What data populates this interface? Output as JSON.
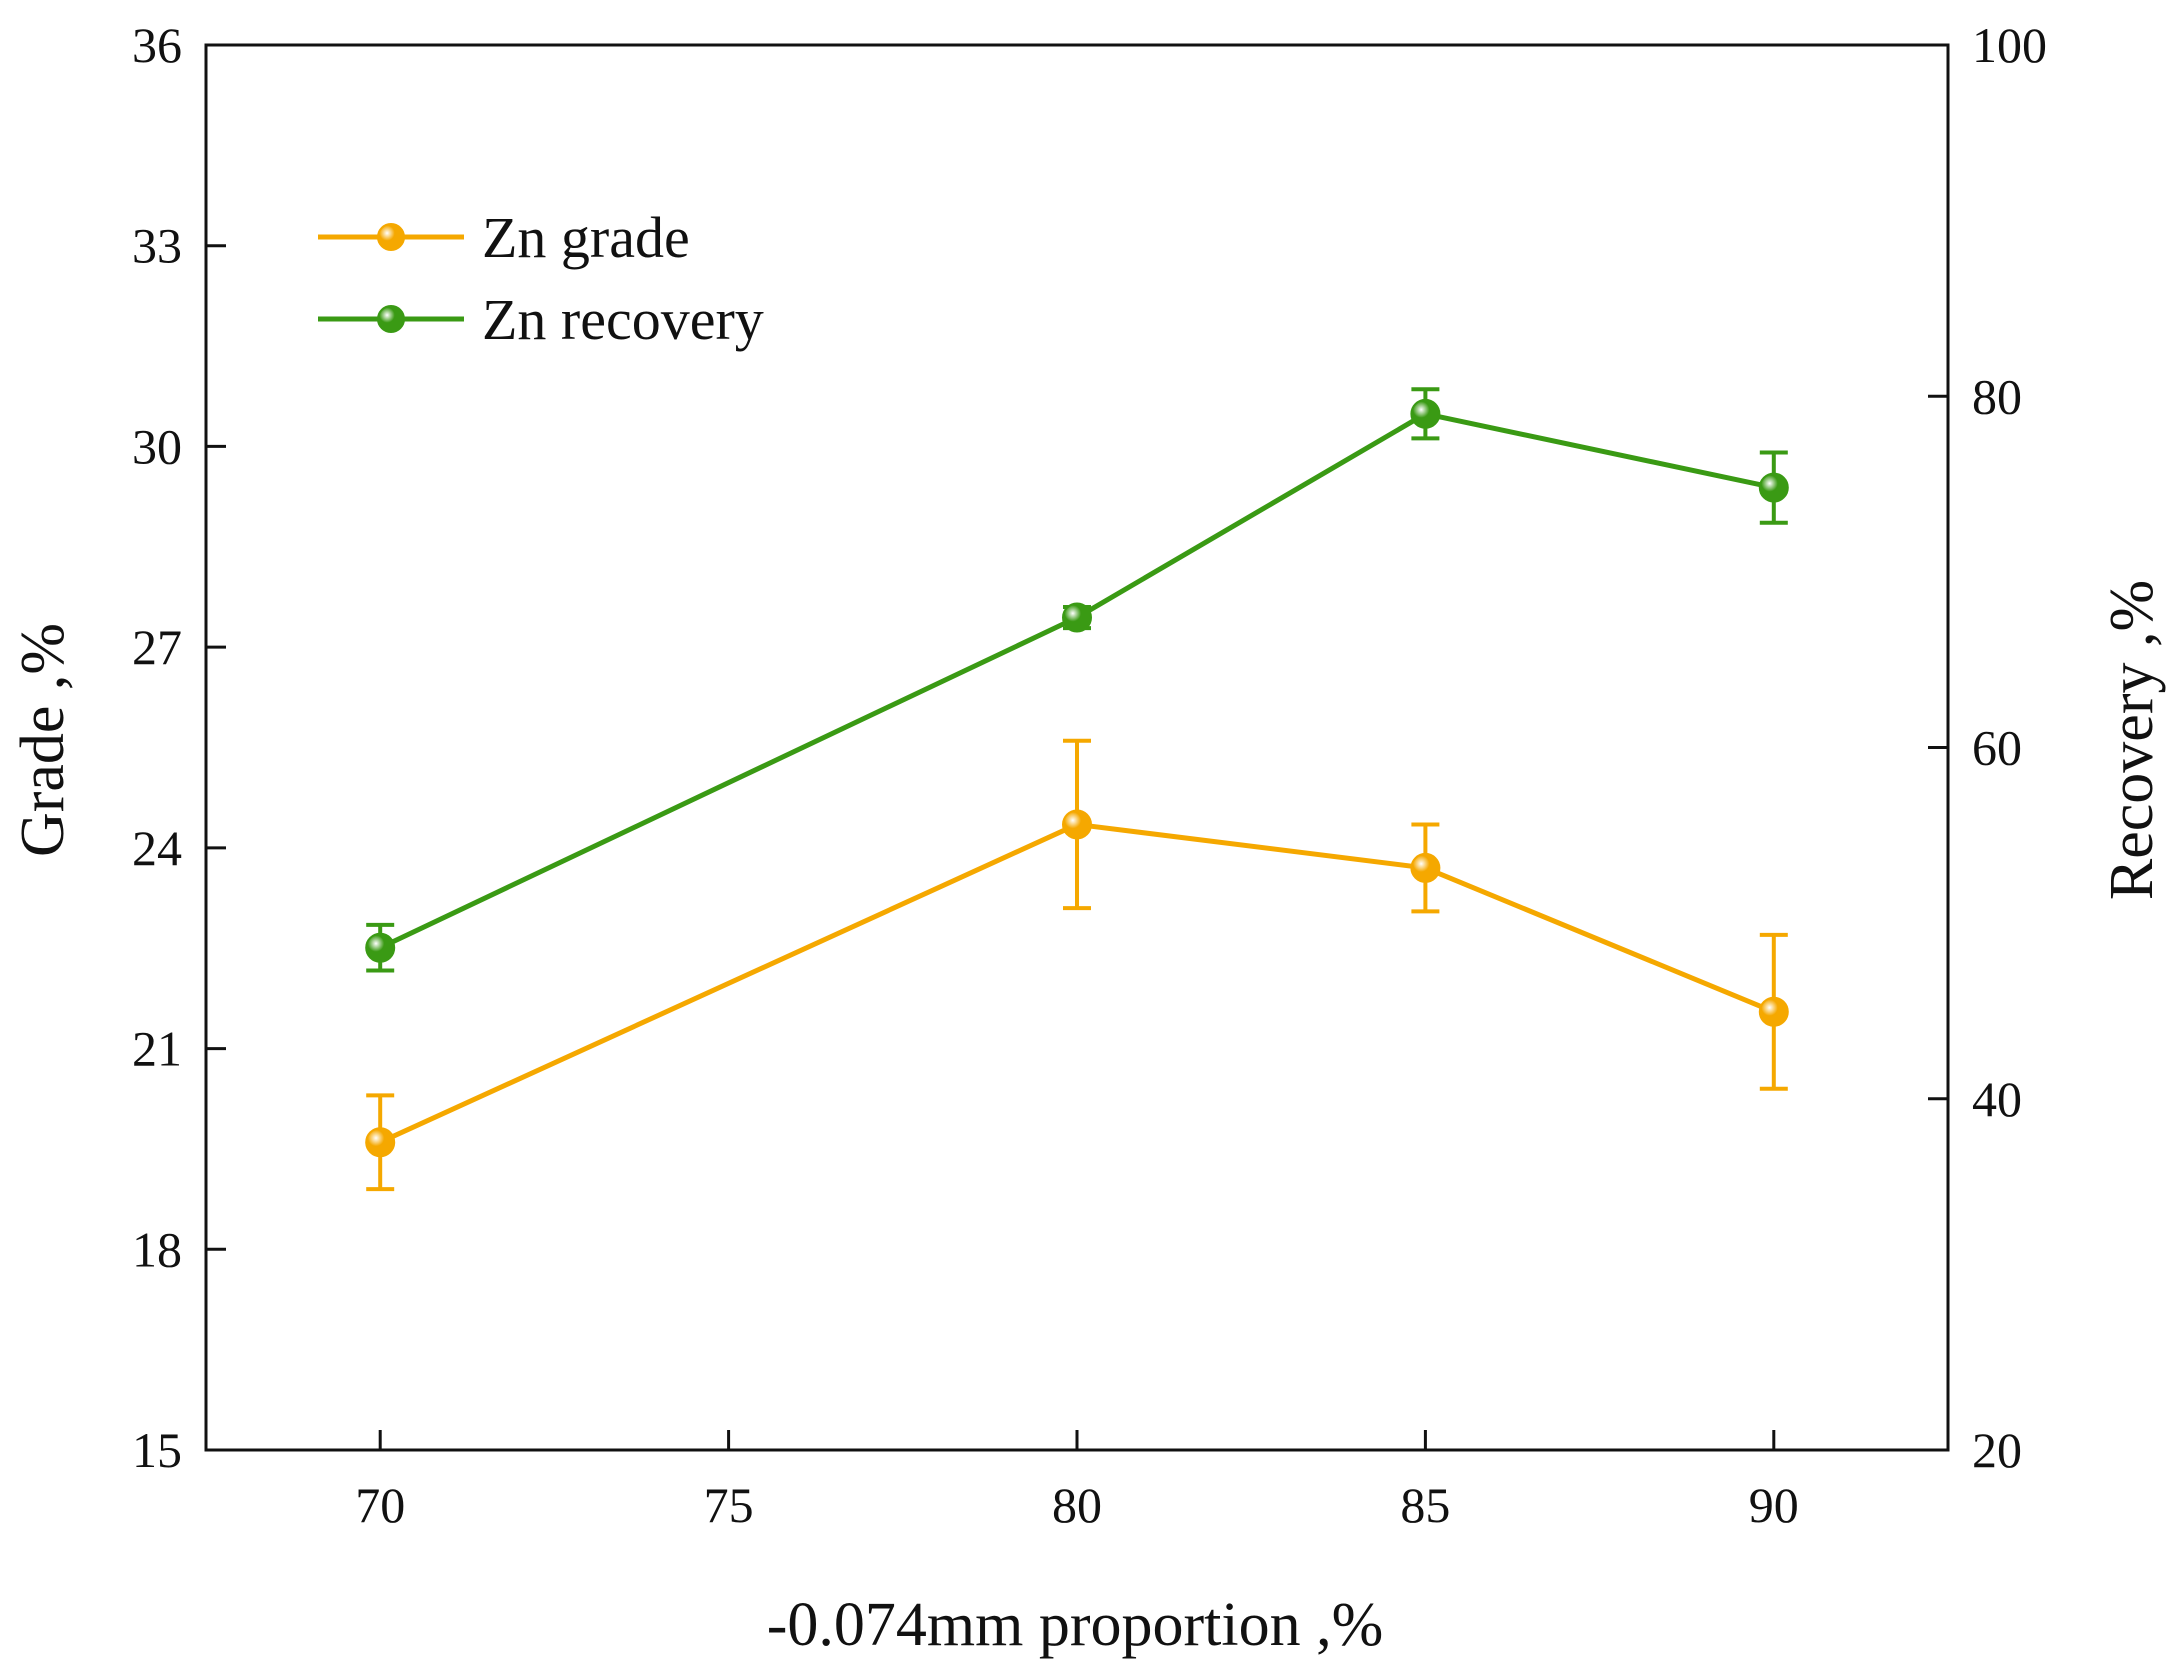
{
  "chart_data": {
    "type": "line",
    "xlabel": "-0.074mm proportion ,%",
    "ylabel": "Grade ,%",
    "y2label": "Recovery ,%",
    "xlim": [
      67.5,
      92.5
    ],
    "ylim": [
      15,
      36
    ],
    "y2lim": [
      20,
      100
    ],
    "xticks": [
      70,
      75,
      80,
      85,
      90
    ],
    "yticks": [
      15,
      18,
      21,
      24,
      27,
      30,
      33,
      36
    ],
    "y2ticks": [
      20,
      40,
      60,
      80,
      100
    ],
    "grid": false,
    "legend_position": "top-left",
    "series": [
      {
        "name": "Zn grade",
        "axis": "left",
        "color": "#F5A800",
        "x": [
          70,
          80,
          85,
          90
        ],
        "values": [
          19.6,
          24.35,
          23.7,
          21.55
        ],
        "errors": [
          0.7,
          1.25,
          0.65,
          1.15
        ]
      },
      {
        "name": "Zn recovery",
        "axis": "right",
        "color": "#3A9A14",
        "x": [
          70,
          80,
          85,
          90
        ],
        "values": [
          48.6,
          67.4,
          79.0,
          74.8
        ],
        "errors": [
          1.3,
          0.6,
          1.4,
          2.0
        ]
      }
    ]
  }
}
